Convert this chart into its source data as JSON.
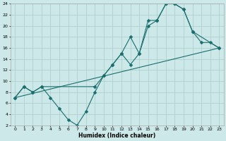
{
  "xlabel": "Humidex (Indice chaleur)",
  "bg_color": "#cce8e8",
  "grid_color": "#aacccc",
  "line_color": "#1a6e6e",
  "line1_x": [
    0,
    1,
    2,
    3,
    4,
    5,
    6,
    7,
    8,
    9,
    10,
    11,
    12,
    13,
    14,
    15,
    16,
    17,
    18,
    19,
    20,
    21,
    22,
    23
  ],
  "line1_y": [
    7,
    9,
    8,
    9,
    7,
    5,
    3,
    2,
    4.5,
    8,
    11,
    13,
    15,
    13,
    15,
    20,
    21,
    24,
    24,
    23,
    19,
    17,
    17,
    16
  ],
  "line2_x": [
    0,
    1,
    2,
    3,
    9,
    10,
    11,
    12,
    13,
    14,
    15,
    16,
    17,
    18,
    19,
    20,
    23
  ],
  "line2_y": [
    7,
    9,
    8,
    9,
    9,
    11,
    13,
    15,
    18,
    15,
    21,
    21,
    24,
    24,
    23,
    19,
    16
  ],
  "line3_x": [
    0,
    23
  ],
  "line3_y": [
    7,
    16
  ],
  "xlim": [
    -0.5,
    23.5
  ],
  "ylim": [
    2,
    24
  ],
  "xticks": [
    0,
    1,
    2,
    3,
    4,
    5,
    6,
    7,
    8,
    9,
    10,
    11,
    12,
    13,
    14,
    15,
    16,
    17,
    18,
    19,
    20,
    21,
    22,
    23
  ],
  "yticks": [
    2,
    4,
    6,
    8,
    10,
    12,
    14,
    16,
    18,
    20,
    22,
    24
  ]
}
